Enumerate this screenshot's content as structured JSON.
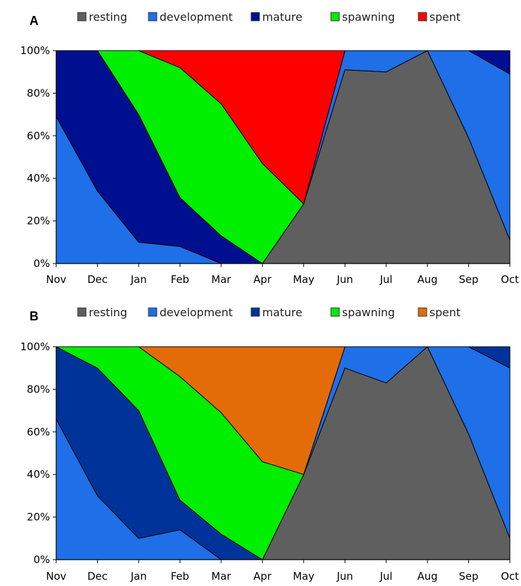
{
  "legend_order": [
    "resting",
    "development",
    "mature",
    "spawning",
    "spent"
  ],
  "chart_data": [
    {
      "type": "area",
      "stacked": "percent",
      "panel_label": "A",
      "categories": [
        "Nov",
        "Dec",
        "Jan",
        "Feb",
        "Mar",
        "Apr",
        "May",
        "Jun",
        "Jul",
        "Aug",
        "Sep",
        "Oct"
      ],
      "y_ticks": [
        "0%",
        "20%",
        "40%",
        "60%",
        "80%",
        "100%"
      ],
      "ylim": [
        0,
        100
      ],
      "legend_position": "top",
      "grid": false,
      "series": [
        {
          "name": "resting",
          "color": "#5f5f5f",
          "values": [
            0,
            0,
            0,
            0,
            0,
            0,
            28,
            91,
            90,
            100,
            59,
            11
          ]
        },
        {
          "name": "development",
          "color": "#1e6fe8",
          "values": [
            69,
            34,
            10,
            8,
            0,
            0,
            0,
            9,
            10,
            0,
            41,
            78
          ]
        },
        {
          "name": "mature",
          "color": "#000f8f",
          "values": [
            31,
            66,
            60,
            23,
            13,
            0,
            0,
            0,
            0,
            0,
            0,
            11
          ]
        },
        {
          "name": "spawning",
          "color": "#00ee00",
          "values": [
            0,
            0,
            30,
            61,
            62,
            47,
            0,
            0,
            0,
            0,
            0,
            0
          ]
        },
        {
          "name": "spent",
          "color": "#ff0000",
          "values": [
            0,
            0,
            0,
            8,
            25,
            53,
            72,
            0,
            0,
            0,
            0,
            0
          ]
        }
      ]
    },
    {
      "type": "area",
      "stacked": "percent",
      "panel_label": "B",
      "categories": [
        "Nov",
        "Dec",
        "Jan",
        "Feb",
        "Mar",
        "Apr",
        "May",
        "Jun",
        "Jul",
        "Aug",
        "Sep",
        "Oct"
      ],
      "y_ticks": [
        "0%",
        "20%",
        "40%",
        "60%",
        "80%",
        "100%"
      ],
      "ylim": [
        0,
        100
      ],
      "legend_position": "top",
      "grid": false,
      "series": [
        {
          "name": "resting",
          "color": "#5f5f5f",
          "values": [
            0,
            0,
            0,
            0,
            0,
            0,
            40,
            90,
            83,
            100,
            59,
            10
          ]
        },
        {
          "name": "development",
          "color": "#1e6fe8",
          "values": [
            66,
            30,
            10,
            14,
            0,
            0,
            0,
            10,
            17,
            0,
            41,
            80
          ]
        },
        {
          "name": "mature",
          "color": "#003399",
          "values": [
            34,
            60,
            60,
            14,
            12,
            0,
            0,
            0,
            0,
            0,
            0,
            10
          ]
        },
        {
          "name": "spawning",
          "color": "#00ee00",
          "values": [
            0,
            10,
            30,
            58,
            57,
            46,
            0,
            0,
            0,
            0,
            0,
            0
          ]
        },
        {
          "name": "spent",
          "color": "#e36c09",
          "values": [
            0,
            0,
            0,
            14,
            31,
            54,
            60,
            0,
            0,
            0,
            0,
            0
          ]
        }
      ]
    }
  ]
}
